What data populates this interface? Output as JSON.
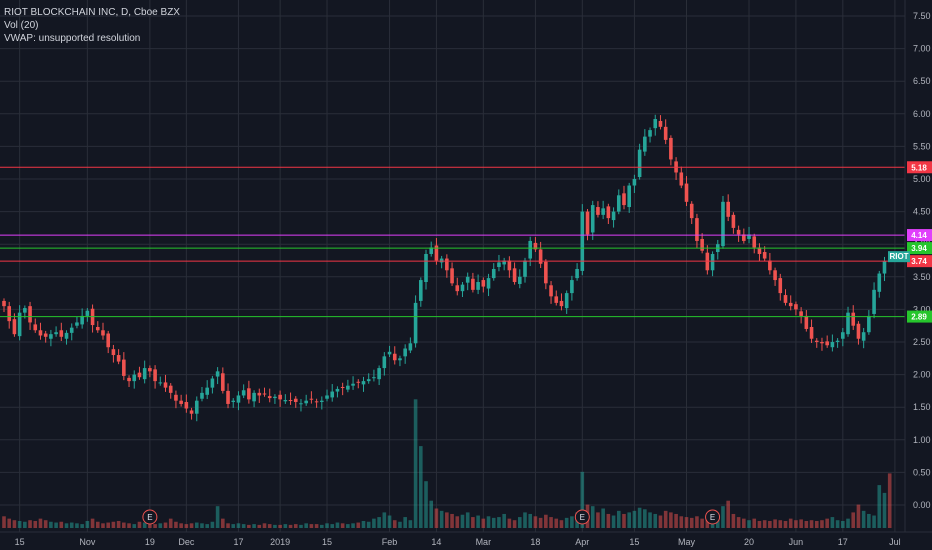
{
  "legend": {
    "symbol_line": "RIOT BLOCKCHAIN INC, D, Cboe BZX",
    "volume_line": "Vol (20)",
    "vwap_line": "VWAP: unsupported resolution"
  },
  "chart_data": {
    "type": "candlestick",
    "title": "RIOT BLOCKCHAIN INC, D, Cboe BZX",
    "ylim": [
      -0.3,
      7.75
    ],
    "y_ticks": [
      "7.50",
      "7.00",
      "6.50",
      "6.00",
      "5.50",
      "5.00",
      "4.50",
      "4.00",
      "3.50",
      "3.00",
      "2.50",
      "2.00",
      "1.50",
      "1.00",
      "0.50",
      "0.00"
    ],
    "y_tick_values": [
      7.5,
      7.0,
      6.5,
      6.0,
      5.5,
      5.0,
      4.5,
      4.0,
      3.5,
      3.0,
      2.5,
      2.0,
      1.5,
      1.0,
      0.5,
      0.0
    ],
    "x_labels": [
      {
        "label": "15",
        "i": 3
      },
      {
        "label": "Nov",
        "i": 16
      },
      {
        "label": "19",
        "i": 28
      },
      {
        "label": "Dec",
        "i": 35
      },
      {
        "label": "17",
        "i": 45
      },
      {
        "label": "2019",
        "i": 53
      },
      {
        "label": "15",
        "i": 62
      },
      {
        "label": "Feb",
        "i": 74
      },
      {
        "label": "14",
        "i": 83
      },
      {
        "label": "Mar",
        "i": 92
      },
      {
        "label": "18",
        "i": 102
      },
      {
        "label": "Apr",
        "i": 111
      },
      {
        "label": "15",
        "i": 121
      },
      {
        "label": "May",
        "i": 131
      },
      {
        "label": "20",
        "i": 143
      },
      {
        "label": "Jun",
        "i": 152
      },
      {
        "label": "17",
        "i": 161
      },
      {
        "label": "Jul",
        "i": 171
      }
    ],
    "closes": [
      3.05,
      2.82,
      2.62,
      2.95,
      3.02,
      2.8,
      2.68,
      2.6,
      2.58,
      2.62,
      2.65,
      2.58,
      2.64,
      2.72,
      2.8,
      2.9,
      2.98,
      2.76,
      2.68,
      2.6,
      2.42,
      2.3,
      2.2,
      1.98,
      1.9,
      2.0,
      1.96,
      2.1,
      2.05,
      1.9,
      1.88,
      1.8,
      1.72,
      1.6,
      1.55,
      1.48,
      1.4,
      1.6,
      1.72,
      1.8,
      1.94,
      2.05,
      1.75,
      1.55,
      1.6,
      1.68,
      1.76,
      1.62,
      1.72,
      1.68,
      1.7,
      1.64,
      1.66,
      1.62,
      1.61,
      1.6,
      1.58,
      1.56,
      1.6,
      1.62,
      1.58,
      1.6,
      1.68,
      1.74,
      1.78,
      1.8,
      1.83,
      1.86,
      1.88,
      1.9,
      1.93,
      1.96,
      2.1,
      2.28,
      2.35,
      2.22,
      2.25,
      2.4,
      2.48,
      3.1,
      3.45,
      3.85,
      3.95,
      3.75,
      3.78,
      3.6,
      3.4,
      3.28,
      3.38,
      3.5,
      3.3,
      3.42,
      3.35,
      3.48,
      3.62,
      3.72,
      3.75,
      3.6,
      3.42,
      3.5,
      3.75,
      4.05,
      3.92,
      3.7,
      3.4,
      3.2,
      3.1,
      3.05,
      3.25,
      3.45,
      3.62,
      4.5,
      4.15,
      4.6,
      4.45,
      4.55,
      4.4,
      4.5,
      4.75,
      4.6,
      4.9,
      5.0,
      5.45,
      5.65,
      5.75,
      5.92,
      5.8,
      5.6,
      5.3,
      5.1,
      4.9,
      4.65,
      4.4,
      4.05,
      3.9,
      3.6,
      3.85,
      4.0,
      4.65,
      4.42,
      4.25,
      4.15,
      4.05,
      4.15,
      3.95,
      3.85,
      3.78,
      3.6,
      3.45,
      3.25,
      3.1,
      3.05,
      3.0,
      2.9,
      2.7,
      2.55,
      2.5,
      2.48,
      2.45,
      2.5,
      2.52,
      2.65,
      2.95,
      2.75,
      2.55,
      2.65,
      2.9,
      3.3,
      3.55,
      3.74
    ],
    "volume": [
      0.15,
      0.12,
      0.1,
      0.09,
      0.08,
      0.1,
      0.09,
      0.12,
      0.1,
      0.08,
      0.07,
      0.08,
      0.06,
      0.07,
      0.06,
      0.05,
      0.09,
      0.12,
      0.08,
      0.06,
      0.07,
      0.08,
      0.09,
      0.07,
      0.06,
      0.05,
      0.08,
      0.07,
      0.06,
      0.05,
      0.06,
      0.07,
      0.12,
      0.08,
      0.06,
      0.05,
      0.06,
      0.07,
      0.06,
      0.05,
      0.08,
      0.28,
      0.12,
      0.06,
      0.05,
      0.06,
      0.05,
      0.04,
      0.05,
      0.04,
      0.06,
      0.05,
      0.04,
      0.04,
      0.05,
      0.04,
      0.05,
      0.04,
      0.06,
      0.05,
      0.05,
      0.04,
      0.06,
      0.05,
      0.07,
      0.06,
      0.05,
      0.06,
      0.07,
      0.09,
      0.08,
      0.12,
      0.14,
      0.2,
      0.16,
      0.1,
      0.08,
      0.14,
      0.1,
      1.65,
      1.05,
      0.6,
      0.35,
      0.25,
      0.22,
      0.2,
      0.18,
      0.15,
      0.17,
      0.2,
      0.14,
      0.16,
      0.12,
      0.15,
      0.13,
      0.14,
      0.18,
      0.12,
      0.1,
      0.14,
      0.2,
      0.18,
      0.15,
      0.13,
      0.17,
      0.14,
      0.12,
      0.1,
      0.13,
      0.15,
      0.2,
      0.72,
      0.3,
      0.28,
      0.2,
      0.25,
      0.18,
      0.16,
      0.22,
      0.18,
      0.2,
      0.22,
      0.26,
      0.24,
      0.2,
      0.18,
      0.16,
      0.22,
      0.2,
      0.18,
      0.15,
      0.14,
      0.13,
      0.15,
      0.12,
      0.14,
      0.16,
      0.14,
      0.28,
      0.35,
      0.18,
      0.14,
      0.12,
      0.1,
      0.12,
      0.09,
      0.1,
      0.09,
      0.11,
      0.1,
      0.09,
      0.12,
      0.1,
      0.11,
      0.09,
      0.1,
      0.09,
      0.1,
      0.12,
      0.14,
      0.1,
      0.09,
      0.12,
      0.2,
      0.3,
      0.22,
      0.18,
      0.16,
      0.55,
      0.45,
      0.7
    ],
    "horizontal_levels": [
      {
        "price": 5.18,
        "label": "5.18",
        "color": "#f23645"
      },
      {
        "price": 4.14,
        "label": "4.14",
        "color": "#e040fb"
      },
      {
        "price": 3.94,
        "label": "3.94",
        "color": "#26c62c"
      },
      {
        "price": 3.74,
        "label": "3.74",
        "color": "#f23645"
      },
      {
        "price": 2.89,
        "label": "2.89",
        "color": "#26c62c"
      }
    ],
    "current_price_tag": {
      "label": "RIOT",
      "color": "#26a69a"
    },
    "earnings_markers": [
      {
        "label": "E",
        "i": 28
      },
      {
        "label": "E",
        "i": 111
      },
      {
        "label": "E",
        "i": 136
      }
    ],
    "colors": {
      "up": "#26a69a",
      "down": "#ef5350",
      "grid": "#2a2e39",
      "background": "#131722"
    }
  }
}
